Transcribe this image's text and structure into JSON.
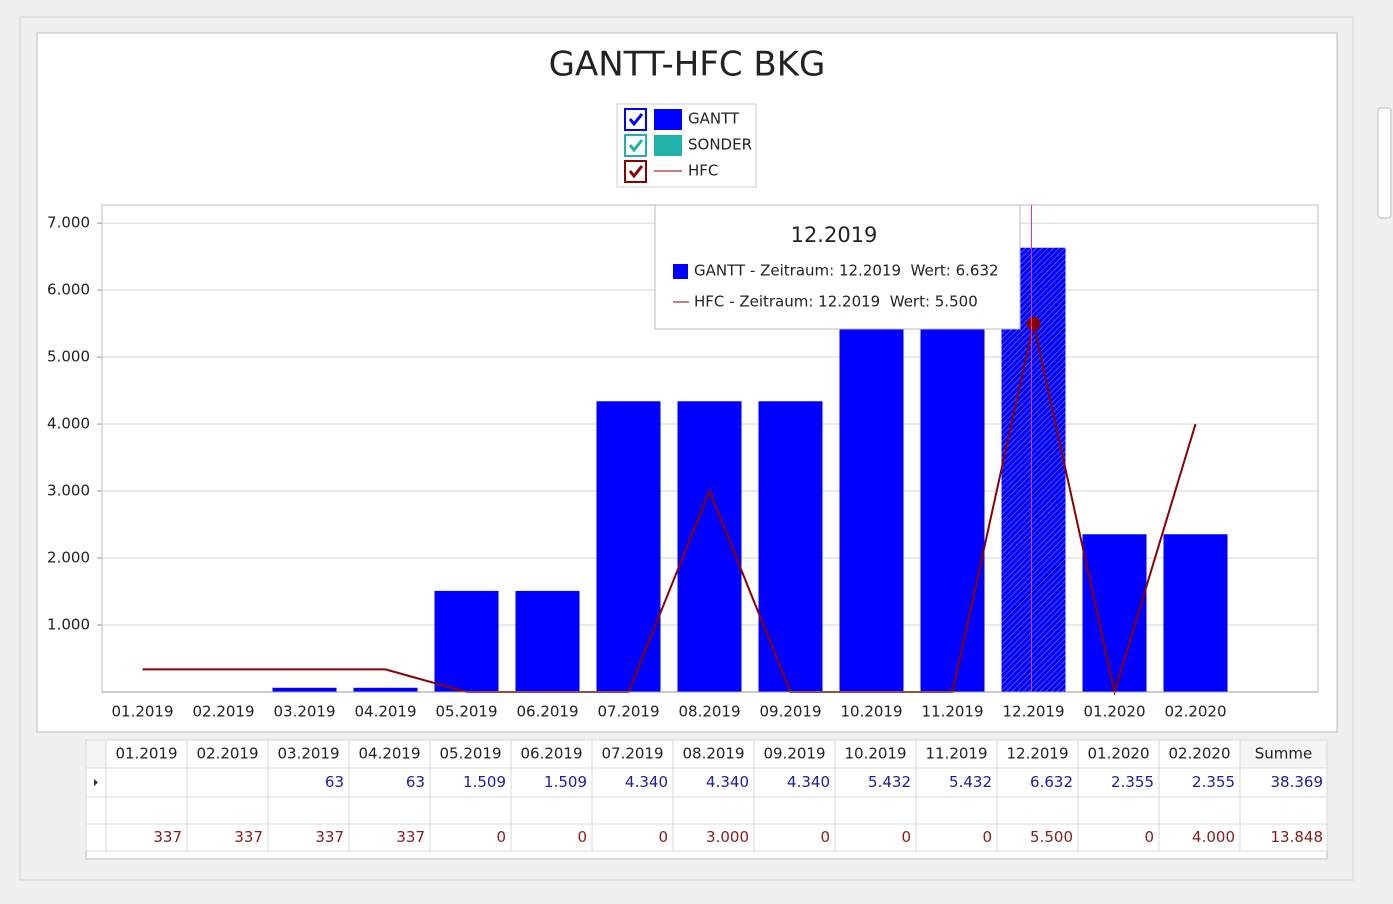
{
  "chart_data": {
    "type": "bar",
    "title": "GANTT-HFC BKG",
    "categories": [
      "01.2019",
      "02.2019",
      "03.2019",
      "04.2019",
      "05.2019",
      "06.2019",
      "07.2019",
      "08.2019",
      "09.2019",
      "10.2019",
      "11.2019",
      "12.2019",
      "01.2020",
      "02.2020"
    ],
    "series": [
      {
        "name": "GANTT",
        "type": "bar",
        "color": "#0000ff",
        "values": [
          null,
          null,
          63,
          63,
          1509,
          1509,
          4340,
          4340,
          4340,
          5432,
          5432,
          6632,
          2355,
          2355
        ],
        "value_labels": [
          null,
          null,
          "63",
          "63",
          "1.509",
          "1.509",
          "4.340",
          "4.340",
          "4.340",
          "5.432",
          "5.432",
          "6.632",
          "2.355",
          "2.355"
        ],
        "total": {
          "value": 38369,
          "label": "38.369"
        }
      },
      {
        "name": "SONDER",
        "type": "bar",
        "color": "#20b2aa",
        "values": [
          null,
          null,
          null,
          null,
          null,
          null,
          null,
          null,
          null,
          null,
          null,
          null,
          null,
          null
        ]
      },
      {
        "name": "HFC",
        "type": "line",
        "color": "#8b0000",
        "values": [
          337,
          337,
          337,
          337,
          0,
          0,
          0,
          3000,
          0,
          0,
          0,
          5500,
          0,
          4000
        ],
        "value_labels": [
          "337",
          "337",
          "337",
          "337",
          "0",
          "0",
          "0",
          "3.000",
          "0",
          "0",
          "0",
          "5.500",
          "0",
          "4.000"
        ],
        "total": {
          "value": 13848,
          "label": "13.848"
        }
      }
    ],
    "ylim": [
      0,
      7270
    ],
    "yticks": [
      {
        "value": 1000,
        "label": "1.000"
      },
      {
        "value": 2000,
        "label": "2.000"
      },
      {
        "value": 3000,
        "label": "3.000"
      },
      {
        "value": 4000,
        "label": "4.000"
      },
      {
        "value": 5000,
        "label": "5.000"
      },
      {
        "value": 6000,
        "label": "6.000"
      },
      {
        "value": 7000,
        "label": "7.000"
      }
    ],
    "grid": true,
    "legend": "top",
    "tooltip": {
      "title": "12.2019",
      "lines": [
        "GANTT - Zeitraum: 12.2019  Wert: 6.632",
        "HFC - Zeitraum: 12.2019  Wert: 5.500"
      ]
    },
    "table": {
      "total_header": "Summe"
    }
  }
}
